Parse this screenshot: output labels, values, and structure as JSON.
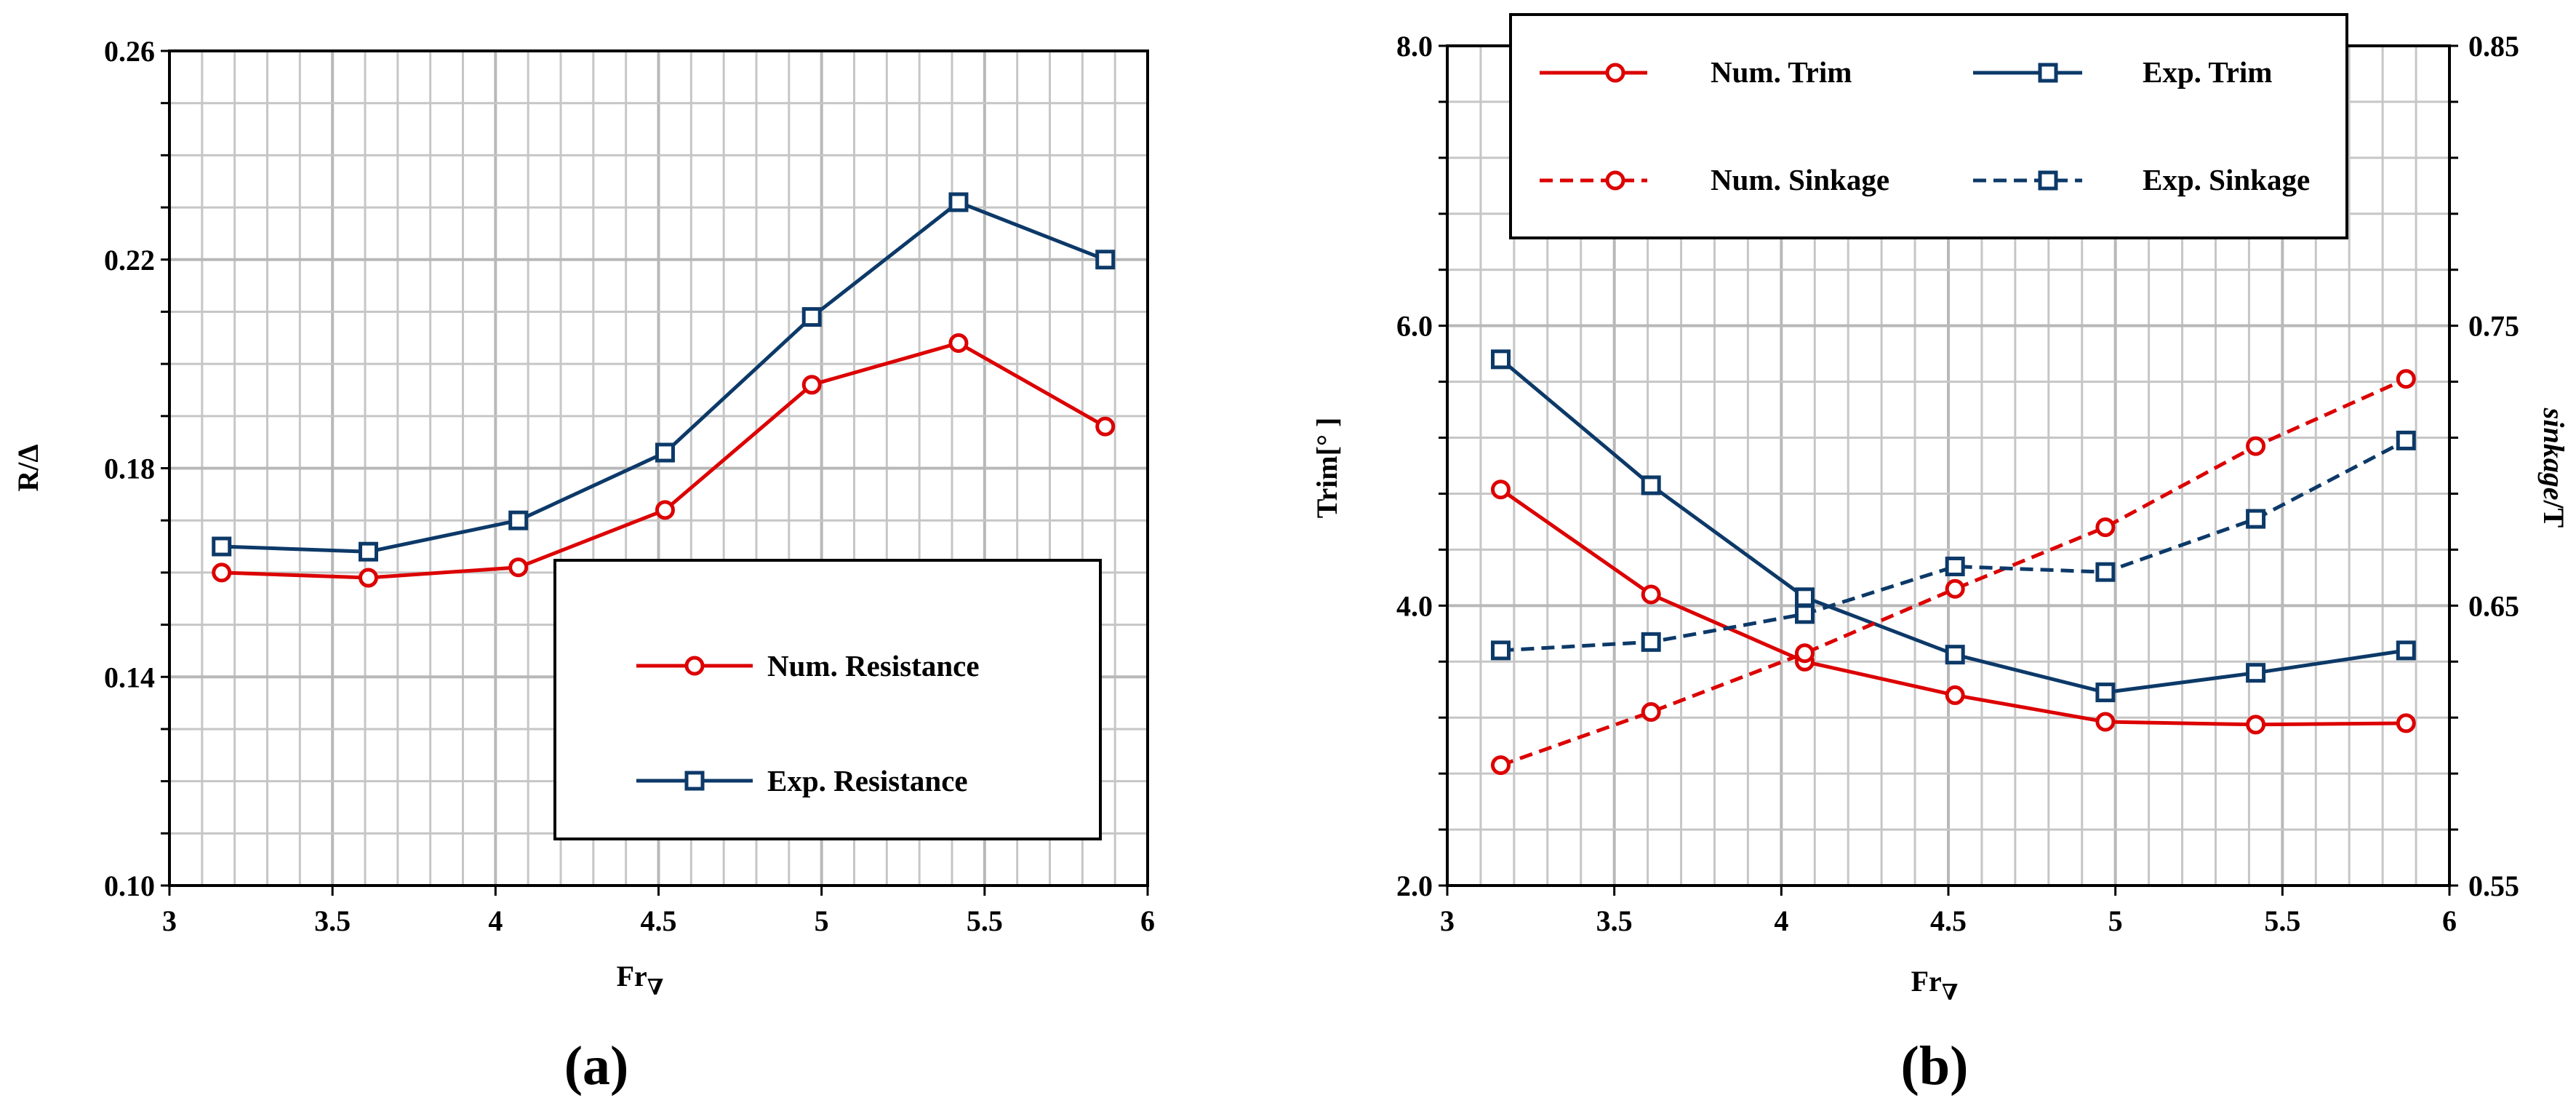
{
  "colors": {
    "red": "#dc0000",
    "blue": "#0c3968",
    "grid": "#c6c6c6",
    "grid_major": "#b8b8b8"
  },
  "chart_data": [
    {
      "type": "line",
      "panel_label": "(a)",
      "xlabel_main": "Fr",
      "xlabel_sub": "∇",
      "ylabel": "R/Δ",
      "xlim": [
        3,
        6
      ],
      "ylim": [
        0.1,
        0.26
      ],
      "x_ticks": [
        "3",
        "3.5",
        "4",
        "4.5",
        "5",
        "5.5",
        "6"
      ],
      "y_ticks": [
        "0.10",
        "0.14",
        "0.18",
        "0.22",
        "0.26"
      ],
      "grid": true,
      "legend_position": "bottom-right",
      "series": [
        {
          "name": "Num. Resistance",
          "color": "#dc0000",
          "marker": "circle",
          "dash": false,
          "x": [
            3.16,
            3.61,
            4.07,
            4.52,
            4.97,
            5.42,
            5.87
          ],
          "y": [
            0.16,
            0.159,
            0.161,
            0.172,
            0.196,
            0.204,
            0.188
          ]
        },
        {
          "name": "Exp. Resistance",
          "color": "#0c3968",
          "marker": "square",
          "dash": false,
          "x": [
            3.16,
            3.61,
            4.07,
            4.52,
            4.97,
            5.42,
            5.87
          ],
          "y": [
            0.165,
            0.164,
            0.17,
            0.183,
            0.209,
            0.231,
            0.22
          ]
        }
      ]
    },
    {
      "type": "line",
      "panel_label": "(b)",
      "xlabel_main": "Fr",
      "xlabel_sub": "∇",
      "ylabel": "Trim[° ]",
      "ylabel_right_main": "sinkage",
      "ylabel_right_tail": "/T",
      "xlim": [
        3,
        6
      ],
      "ylim": [
        2.0,
        8.0
      ],
      "ylim_right": [
        0.55,
        0.85
      ],
      "x_ticks": [
        "3",
        "3.5",
        "4",
        "4.5",
        "5",
        "5.5",
        "6"
      ],
      "y_ticks": [
        "2.0",
        "4.0",
        "6.0",
        "8.0"
      ],
      "y_ticks_right": [
        "0.55",
        "0.65",
        "0.75",
        "0.85"
      ],
      "grid": true,
      "legend_position": "top",
      "series": [
        {
          "name": "Num. Trim",
          "axis": "left",
          "color": "#dc0000",
          "marker": "circle",
          "dash": false,
          "x": [
            3.16,
            3.61,
            4.07,
            4.52,
            4.97,
            5.42,
            5.87
          ],
          "y": [
            4.83,
            4.08,
            3.6,
            3.36,
            3.17,
            3.15,
            3.16
          ]
        },
        {
          "name": "Exp. Trim",
          "axis": "left",
          "color": "#0c3968",
          "marker": "square",
          "dash": false,
          "x": [
            3.16,
            3.61,
            4.07,
            4.52,
            4.97,
            5.42,
            5.87
          ],
          "y": [
            5.76,
            4.86,
            4.06,
            3.65,
            3.38,
            3.52,
            3.68
          ]
        },
        {
          "name": "Num. Sinkage",
          "axis": "right",
          "color": "#dc0000",
          "marker": "circle",
          "dash": true,
          "x": [
            3.16,
            3.61,
            4.07,
            4.52,
            4.97,
            5.42,
            5.87
          ],
          "y": [
            0.593,
            0.612,
            0.633,
            0.656,
            0.678,
            0.707,
            0.731
          ]
        },
        {
          "name": "Exp. Sinkage",
          "axis": "right",
          "color": "#0c3968",
          "marker": "square",
          "dash": true,
          "x": [
            3.16,
            3.61,
            4.07,
            4.52,
            4.97,
            5.42,
            5.87
          ],
          "y": [
            0.634,
            0.637,
            0.647,
            0.664,
            0.662,
            0.681,
            0.709
          ]
        }
      ]
    }
  ]
}
